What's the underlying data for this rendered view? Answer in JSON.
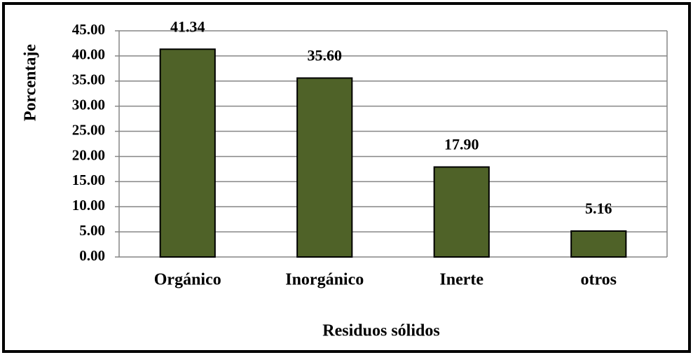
{
  "chart_data": {
    "type": "bar",
    "x_label": "Residuos sólidos",
    "y_label": "Porcentaje",
    "categories": [
      "Orgánico",
      "Inorgánico",
      "Inerte",
      "otros"
    ],
    "values": [
      41.34,
      35.6,
      17.9,
      5.16
    ],
    "value_labels": [
      "41.34",
      "35.60",
      "17.90",
      "5.16"
    ],
    "color": "#4f6228",
    "ylim": [
      0,
      45
    ],
    "yticks": [
      {
        "value": 0,
        "label": "0.00"
      },
      {
        "value": 5,
        "label": "5.00"
      },
      {
        "value": 10,
        "label": "10.00"
      },
      {
        "value": 15,
        "label": "15.00"
      },
      {
        "value": 20,
        "label": "20.00"
      },
      {
        "value": 25,
        "label": "25.00"
      },
      {
        "value": 30,
        "label": "30.00"
      },
      {
        "value": 35,
        "label": "35.00"
      },
      {
        "value": 40,
        "label": "40.00"
      },
      {
        "value": 45,
        "label": "45.00"
      }
    ],
    "grid": true
  }
}
